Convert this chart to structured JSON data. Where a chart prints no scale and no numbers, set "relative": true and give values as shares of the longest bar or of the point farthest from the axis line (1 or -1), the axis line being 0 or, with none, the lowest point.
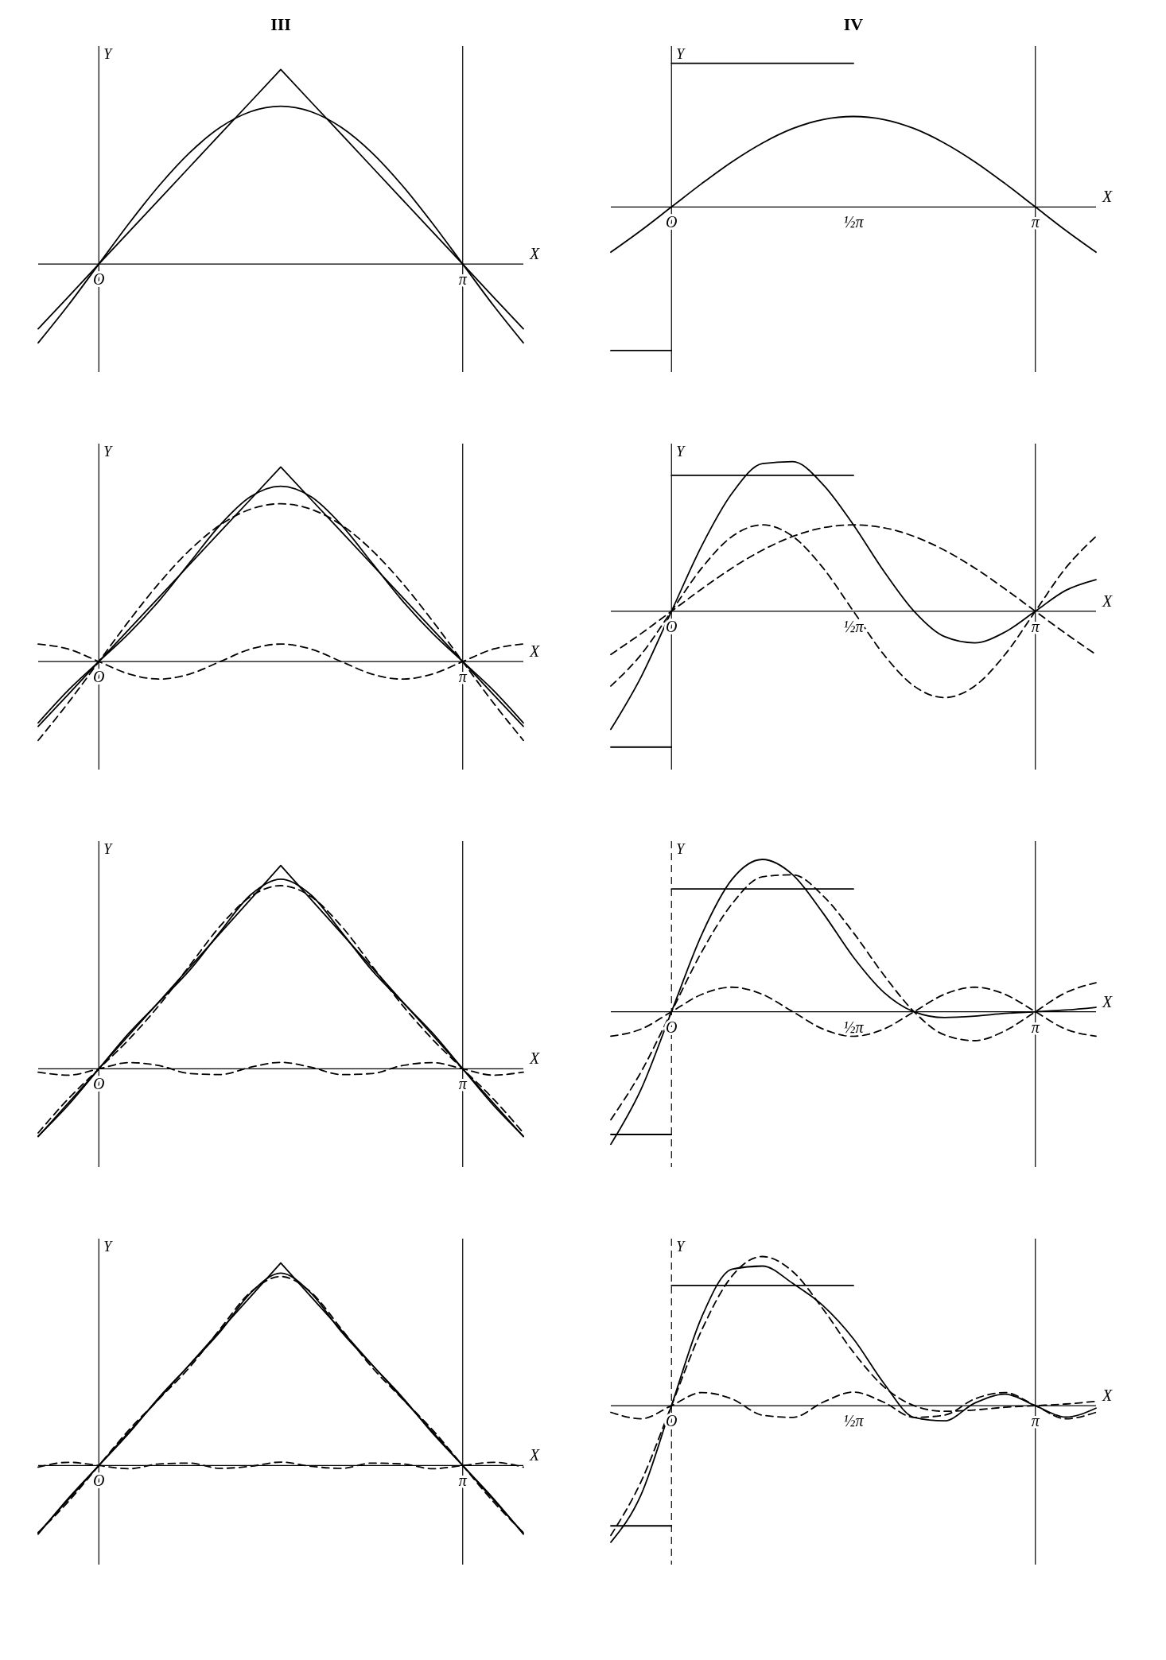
{
  "chart_data": [
    {
      "type": "line",
      "title": "III",
      "xlabel": "X",
      "ylabel": "Y",
      "relative": true,
      "categories": [
        null,
        null,
        "O",
        null,
        null,
        null,
        null,
        null,
        null,
        null,
        null,
        null,
        null,
        null,
        "π",
        null,
        null
      ],
      "ref_lines": [
        {
          "axis": "x",
          "value": "O",
          "line_style": "solid"
        },
        {
          "axis": "x",
          "value": "π",
          "line_style": "solid"
        }
      ],
      "series": [
        {
          "color": "#000000",
          "line_style": "solid",
          "values": [
            -0.333,
            -0.167,
            0,
            0.167,
            0.333,
            0.5,
            0.667,
            0.833,
            1,
            0.833,
            0.667,
            0.5,
            0.333,
            0.167,
            0,
            -0.167,
            -0.333
          ]
        },
        {
          "color": "#000000",
          "line_style": "solid",
          "values": [
            -0.405,
            -0.21,
            0,
            0.21,
            0.405,
            0.573,
            0.702,
            0.783,
            0.811,
            0.783,
            0.702,
            0.573,
            0.405,
            0.21,
            0,
            -0.21,
            -0.405
          ]
        }
      ]
    },
    {
      "type": "line",
      "title": "IV",
      "xlabel": "X",
      "ylabel": "Y",
      "relative": true,
      "categories": [
        null,
        null,
        "O",
        null,
        null,
        null,
        null,
        null,
        "½π",
        null,
        null,
        null,
        null,
        null,
        "π",
        null,
        null
      ],
      "ref_lines": [
        {
          "axis": "x",
          "value": "O",
          "line_style": "solid"
        },
        {
          "axis": "x",
          "value": "π",
          "line_style": "solid"
        }
      ],
      "series": [
        {
          "color": "#000000",
          "line_style": "solid",
          "values": [
            -1,
            -1,
            -1,
            null,
            null,
            null,
            null,
            null,
            null,
            null,
            null,
            null,
            null,
            null,
            null,
            null,
            null
          ]
        },
        {
          "color": "#000000",
          "line_style": "solid",
          "values": [
            null,
            null,
            1,
            1,
            1,
            1,
            1,
            1,
            1,
            null,
            null,
            null,
            null,
            null,
            null,
            null,
            null
          ]
        },
        {
          "color": "#000000",
          "line_style": "solid",
          "values": [
            -0.315,
            -0.163,
            0,
            0.163,
            0.315,
            0.445,
            0.546,
            0.609,
            0.63,
            0.609,
            0.546,
            0.445,
            0.315,
            0.163,
            0,
            -0.163,
            -0.315
          ]
        }
      ]
    },
    {
      "type": "line",
      "xlabel": "X",
      "ylabel": "Y",
      "relative": true,
      "categories": [
        null,
        null,
        "O",
        null,
        null,
        null,
        null,
        null,
        null,
        null,
        null,
        null,
        null,
        null,
        "π",
        null,
        null
      ],
      "ref_lines": [
        {
          "axis": "x",
          "value": "O",
          "line_style": "solid"
        },
        {
          "axis": "x",
          "value": "π",
          "line_style": "solid"
        }
      ],
      "series": [
        {
          "color": "#000000",
          "line_style": "solid",
          "values": [
            -0.333,
            -0.167,
            0,
            0.167,
            0.333,
            0.5,
            0.667,
            0.833,
            1,
            0.833,
            0.667,
            0.5,
            0.333,
            0.167,
            0,
            -0.167,
            -0.333
          ]
        },
        {
          "color": "#000000",
          "line_style": "solid",
          "values": [
            -0.315,
            -0.146,
            0,
            0.146,
            0.315,
            0.509,
            0.702,
            0.847,
            0.901,
            0.847,
            0.702,
            0.509,
            0.315,
            0.146,
            0,
            -0.146,
            -0.315
          ]
        },
        {
          "color": "#000000",
          "line_style": "dashed",
          "values": [
            -0.405,
            -0.21,
            0,
            0.21,
            0.405,
            0.573,
            0.702,
            0.783,
            0.811,
            0.783,
            0.702,
            0.573,
            0.405,
            0.21,
            0,
            -0.21,
            -0.405
          ]
        },
        {
          "color": "#000000",
          "line_style": "dashed",
          "values": [
            0.09,
            0.064,
            0,
            -0.064,
            -0.09,
            -0.064,
            0,
            0.064,
            0.09,
            0.064,
            0,
            -0.064,
            -0.09,
            -0.064,
            0,
            0.064,
            0.09
          ]
        }
      ]
    },
    {
      "type": "line",
      "xlabel": "X",
      "ylabel": "Y",
      "relative": true,
      "categories": [
        null,
        null,
        "O",
        null,
        null,
        null,
        null,
        null,
        "½π",
        null,
        null,
        null,
        null,
        null,
        "π",
        null,
        null
      ],
      "ref_lines": [
        {
          "axis": "x",
          "value": "O",
          "line_style": "solid"
        },
        {
          "axis": "x",
          "value": "π",
          "line_style": "solid"
        }
      ],
      "series": [
        {
          "color": "#000000",
          "line_style": "solid",
          "values": [
            -0.908,
            -0.908,
            -0.908,
            null,
            null,
            null,
            null,
            null,
            null,
            null,
            null,
            null,
            null,
            null,
            null,
            null,
            null
          ]
        },
        {
          "color": "#000000",
          "line_style": "solid",
          "values": [
            null,
            null,
            0.908,
            0.908,
            0.908,
            0.908,
            0.908,
            0.908,
            0.908,
            null,
            null,
            null,
            null,
            null,
            null,
            null,
            null
          ]
        },
        {
          "color": "#000000",
          "line_style": "solid",
          "values": [
            -0.789,
            -0.438,
            0,
            0.438,
            0.789,
            0.986,
            1,
            0.846,
            0.577,
            0.269,
            0,
            -0.169,
            -0.211,
            -0.139,
            0,
            0.139,
            0.211
          ]
        },
        {
          "color": "#000000",
          "line_style": "dashed",
          "values": [
            -0.289,
            -0.149,
            0,
            0.149,
            0.289,
            0.408,
            0.5,
            0.558,
            0.577,
            0.558,
            0.5,
            0.408,
            0.289,
            0.149,
            0,
            -0.149,
            -0.289
          ]
        },
        {
          "color": "#000000",
          "line_style": "dashed",
          "values": [
            -0.5,
            -0.289,
            0,
            0.289,
            0.5,
            0.577,
            0.5,
            0.289,
            0,
            -0.289,
            -0.5,
            -0.577,
            -0.5,
            -0.289,
            0,
            0.289,
            0.5
          ]
        }
      ]
    },
    {
      "type": "line",
      "xlabel": "X",
      "ylabel": "Y",
      "relative": true,
      "categories": [
        null,
        null,
        "O",
        null,
        null,
        null,
        null,
        null,
        null,
        null,
        null,
        null,
        null,
        null,
        "π",
        null,
        null
      ],
      "ref_lines": [
        {
          "axis": "x",
          "value": "O",
          "line_style": "solid"
        },
        {
          "axis": "x",
          "value": "π",
          "line_style": "solid"
        }
      ],
      "series": [
        {
          "color": "#000000",
          "line_style": "solid",
          "values": [
            -0.333,
            -0.167,
            0,
            0.167,
            0.333,
            0.5,
            0.667,
            0.833,
            1,
            0.833,
            0.667,
            0.5,
            0.333,
            0.167,
            0,
            -0.167,
            -0.333
          ]
        },
        {
          "color": "#000000",
          "line_style": "solid",
          "values": [
            -0.331,
            -0.177,
            0,
            0.177,
            0.331,
            0.486,
            0.674,
            0.855,
            0.933,
            0.855,
            0.674,
            0.486,
            0.331,
            0.177,
            0,
            -0.177,
            -0.331
          ]
        },
        {
          "color": "#000000",
          "line_style": "dashed",
          "values": [
            -0.315,
            -0.146,
            0,
            0.146,
            0.315,
            0.509,
            0.702,
            0.847,
            0.901,
            0.847,
            0.702,
            0.509,
            0.315,
            0.146,
            0,
            -0.146,
            -0.315
          ]
        },
        {
          "color": "#000000",
          "line_style": "dashed",
          "values": [
            -0.016,
            -0.031,
            0,
            0.031,
            0.016,
            -0.023,
            -0.028,
            0.008,
            0.032,
            0.008,
            -0.028,
            -0.023,
            0.016,
            0.031,
            0,
            -0.031,
            -0.016
          ]
        }
      ]
    },
    {
      "type": "line",
      "xlabel": "X",
      "ylabel": "Y",
      "relative": true,
      "categories": [
        null,
        null,
        "O",
        null,
        null,
        null,
        null,
        null,
        "½π",
        null,
        null,
        null,
        null,
        null,
        "π",
        null,
        null
      ],
      "ref_lines": [
        {
          "axis": "x",
          "value": "O",
          "line_style": "dashed"
        },
        {
          "axis": "x",
          "value": "π",
          "line_style": "solid"
        }
      ],
      "series": [
        {
          "color": "#000000",
          "line_style": "solid",
          "values": [
            -0.806,
            -0.806,
            -0.806,
            null,
            null,
            null,
            null,
            null,
            null,
            null,
            null,
            null,
            null,
            null,
            null,
            null,
            null
          ]
        },
        {
          "color": "#000000",
          "line_style": "solid",
          "values": [
            null,
            null,
            0.806,
            0.806,
            0.806,
            0.806,
            0.806,
            0.806,
            0.806,
            null,
            null,
            null,
            null,
            null,
            null,
            null,
            null
          ]
        },
        {
          "color": "#000000",
          "line_style": "solid",
          "values": [
            -0.87,
            -0.508,
            0,
            0.508,
            0.87,
            1,
            0.899,
            0.647,
            0.358,
            0.128,
            0,
            -0.038,
            -0.029,
            -0.011,
            0,
            0.011,
            0.029
          ]
        },
        {
          "color": "#000000",
          "line_style": "dashed",
          "values": [
            -0.709,
            -0.394,
            0,
            0.394,
            0.709,
            0.886,
            0.899,
            0.761,
            0.519,
            0.242,
            0,
            -0.152,
            -0.19,
            -0.125,
            0,
            0.125,
            0.19
          ]
        },
        {
          "color": "#000000",
          "line_style": "dashed",
          "values": [
            -0.161,
            -0.114,
            0,
            0.114,
            0.161,
            0.114,
            0,
            -0.114,
            -0.161,
            -0.114,
            0,
            0.114,
            0.161,
            0.114,
            0,
            -0.114,
            -0.161
          ]
        }
      ]
    },
    {
      "type": "line",
      "xlabel": "X",
      "ylabel": "Y",
      "relative": true,
      "categories": [
        null,
        null,
        "O",
        null,
        null,
        null,
        null,
        null,
        null,
        null,
        null,
        null,
        null,
        null,
        "π",
        null,
        null
      ],
      "ref_lines": [
        {
          "axis": "x",
          "value": "O",
          "line_style": "solid"
        },
        {
          "axis": "x",
          "value": "π",
          "line_style": "solid"
        }
      ],
      "series": [
        {
          "color": "#000000",
          "line_style": "solid",
          "values": [
            -0.333,
            -0.167,
            0,
            0.167,
            0.333,
            0.5,
            0.667,
            0.833,
            1,
            0.833,
            0.667,
            0.5,
            0.333,
            0.167,
            0,
            -0.167,
            -0.333
          ]
        },
        {
          "color": "#000000",
          "line_style": "solid",
          "values": [
            -0.339,
            -0.161,
            0,
            0.161,
            0.339,
            0.498,
            0.66,
            0.851,
            0.95,
            0.851,
            0.66,
            0.498,
            0.339,
            0.161,
            0,
            -0.161,
            -0.339
          ]
        },
        {
          "color": "#000000",
          "line_style": "dashed",
          "values": [
            -0.331,
            -0.177,
            0,
            0.177,
            0.331,
            0.486,
            0.674,
            0.855,
            0.933,
            0.855,
            0.674,
            0.486,
            0.331,
            0.177,
            0,
            -0.177,
            -0.331
          ]
        },
        {
          "color": "#000000",
          "line_style": "dashed",
          "values": [
            -0.008,
            0.016,
            0,
            -0.016,
            0.008,
            0.012,
            -0.014,
            -0.004,
            0.017,
            -0.004,
            -0.014,
            0.012,
            0.008,
            -0.016,
            0,
            0.016,
            -0.008
          ]
        }
      ]
    },
    {
      "type": "line",
      "xlabel": "X",
      "ylabel": "Y",
      "relative": true,
      "categories": [
        null,
        null,
        "O",
        null,
        null,
        null,
        null,
        null,
        "½π",
        null,
        null,
        null,
        null,
        null,
        "π",
        null,
        null
      ],
      "ref_lines": [
        {
          "axis": "x",
          "value": "O",
          "line_style": "dashed"
        },
        {
          "axis": "x",
          "value": "π",
          "line_style": "solid"
        }
      ],
      "series": [
        {
          "color": "#000000",
          "line_style": "solid",
          "values": [
            -0.806,
            -0.806,
            -0.806,
            null,
            null,
            null,
            null,
            null,
            null,
            null,
            null,
            null,
            null,
            null,
            null,
            null,
            null
          ]
        },
        {
          "color": "#000000",
          "line_style": "solid",
          "values": [
            null,
            null,
            0.806,
            0.806,
            0.806,
            0.806,
            0.806,
            0.806,
            0.806,
            null,
            null,
            null,
            null,
            null,
            null,
            null,
            null
          ]
        },
        {
          "color": "#000000",
          "line_style": "solid",
          "values": [
            -0.916,
            -0.596,
            0,
            0.596,
            0.916,
            0.936,
            0.82,
            0.67,
            0.448,
            0.151,
            -0.079,
            -0.102,
            0.017,
            0.077,
            0,
            -0.077,
            -0.017
          ]
        },
        {
          "color": "#000000",
          "line_style": "dashed",
          "values": [
            -0.87,
            -0.508,
            0,
            0.508,
            0.87,
            1,
            0.899,
            0.647,
            0.358,
            0.128,
            0,
            -0.038,
            -0.029,
            -0.011,
            0,
            0.011,
            0.029
          ]
        },
        {
          "color": "#000000",
          "line_style": "dashed",
          "values": [
            -0.045,
            -0.088,
            0,
            0.088,
            0.045,
            -0.064,
            -0.079,
            0.023,
            0.091,
            0.023,
            -0.079,
            -0.064,
            0.045,
            0.088,
            0,
            -0.088,
            -0.045
          ]
        }
      ]
    }
  ]
}
